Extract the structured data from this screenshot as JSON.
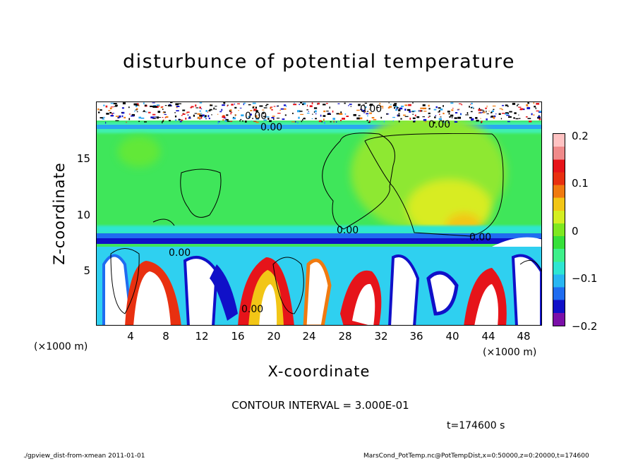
{
  "chart_data": {
    "type": "heatmap",
    "title": "disturbunce of potential temperature",
    "xlabel": "X-coordinate",
    "ylabel": "Z-coordinate",
    "x_unit": "(×1000 m)",
    "y_unit": "(×1000 m)",
    "xlim": [
      0,
      50
    ],
    "ylim": [
      0,
      20
    ],
    "x_ticks": [
      "4",
      "8",
      "12",
      "16",
      "20",
      "24",
      "28",
      "32",
      "36",
      "40",
      "44",
      "48"
    ],
    "y_ticks": [
      "5",
      "10",
      "15"
    ],
    "colorbar": {
      "range": [
        -0.2,
        0.2
      ],
      "ticks": [
        "0.2",
        "0.1",
        "0",
        "−0.1",
        "−0.2"
      ],
      "colors": [
        "#7b0fa8",
        "#1010c8",
        "#1f6cf0",
        "#28b6f2",
        "#2ee6d2",
        "#3ef08a",
        "#36e03a",
        "#7ee820",
        "#d4ee22",
        "#f2c616",
        "#f07a10",
        "#e83010",
        "#e6141a",
        "#f08a8a",
        "#ffc2c2"
      ]
    },
    "contour_labels": [
      "0.00",
      "0.00",
      "0.00",
      "0.00",
      "0.00",
      "0.00",
      "0.00",
      "0.00"
    ],
    "contour_interval_text": "CONTOUR INTERVAL = 3.000E-01",
    "time_text": "t=174600 s"
  },
  "footer": {
    "left": "./gpview_dist-from-xmean  2011-01-01",
    "right": "MarsCond_PotTemp.nc@PotTempDist,x=0:50000,z=0:20000,t=174600"
  }
}
